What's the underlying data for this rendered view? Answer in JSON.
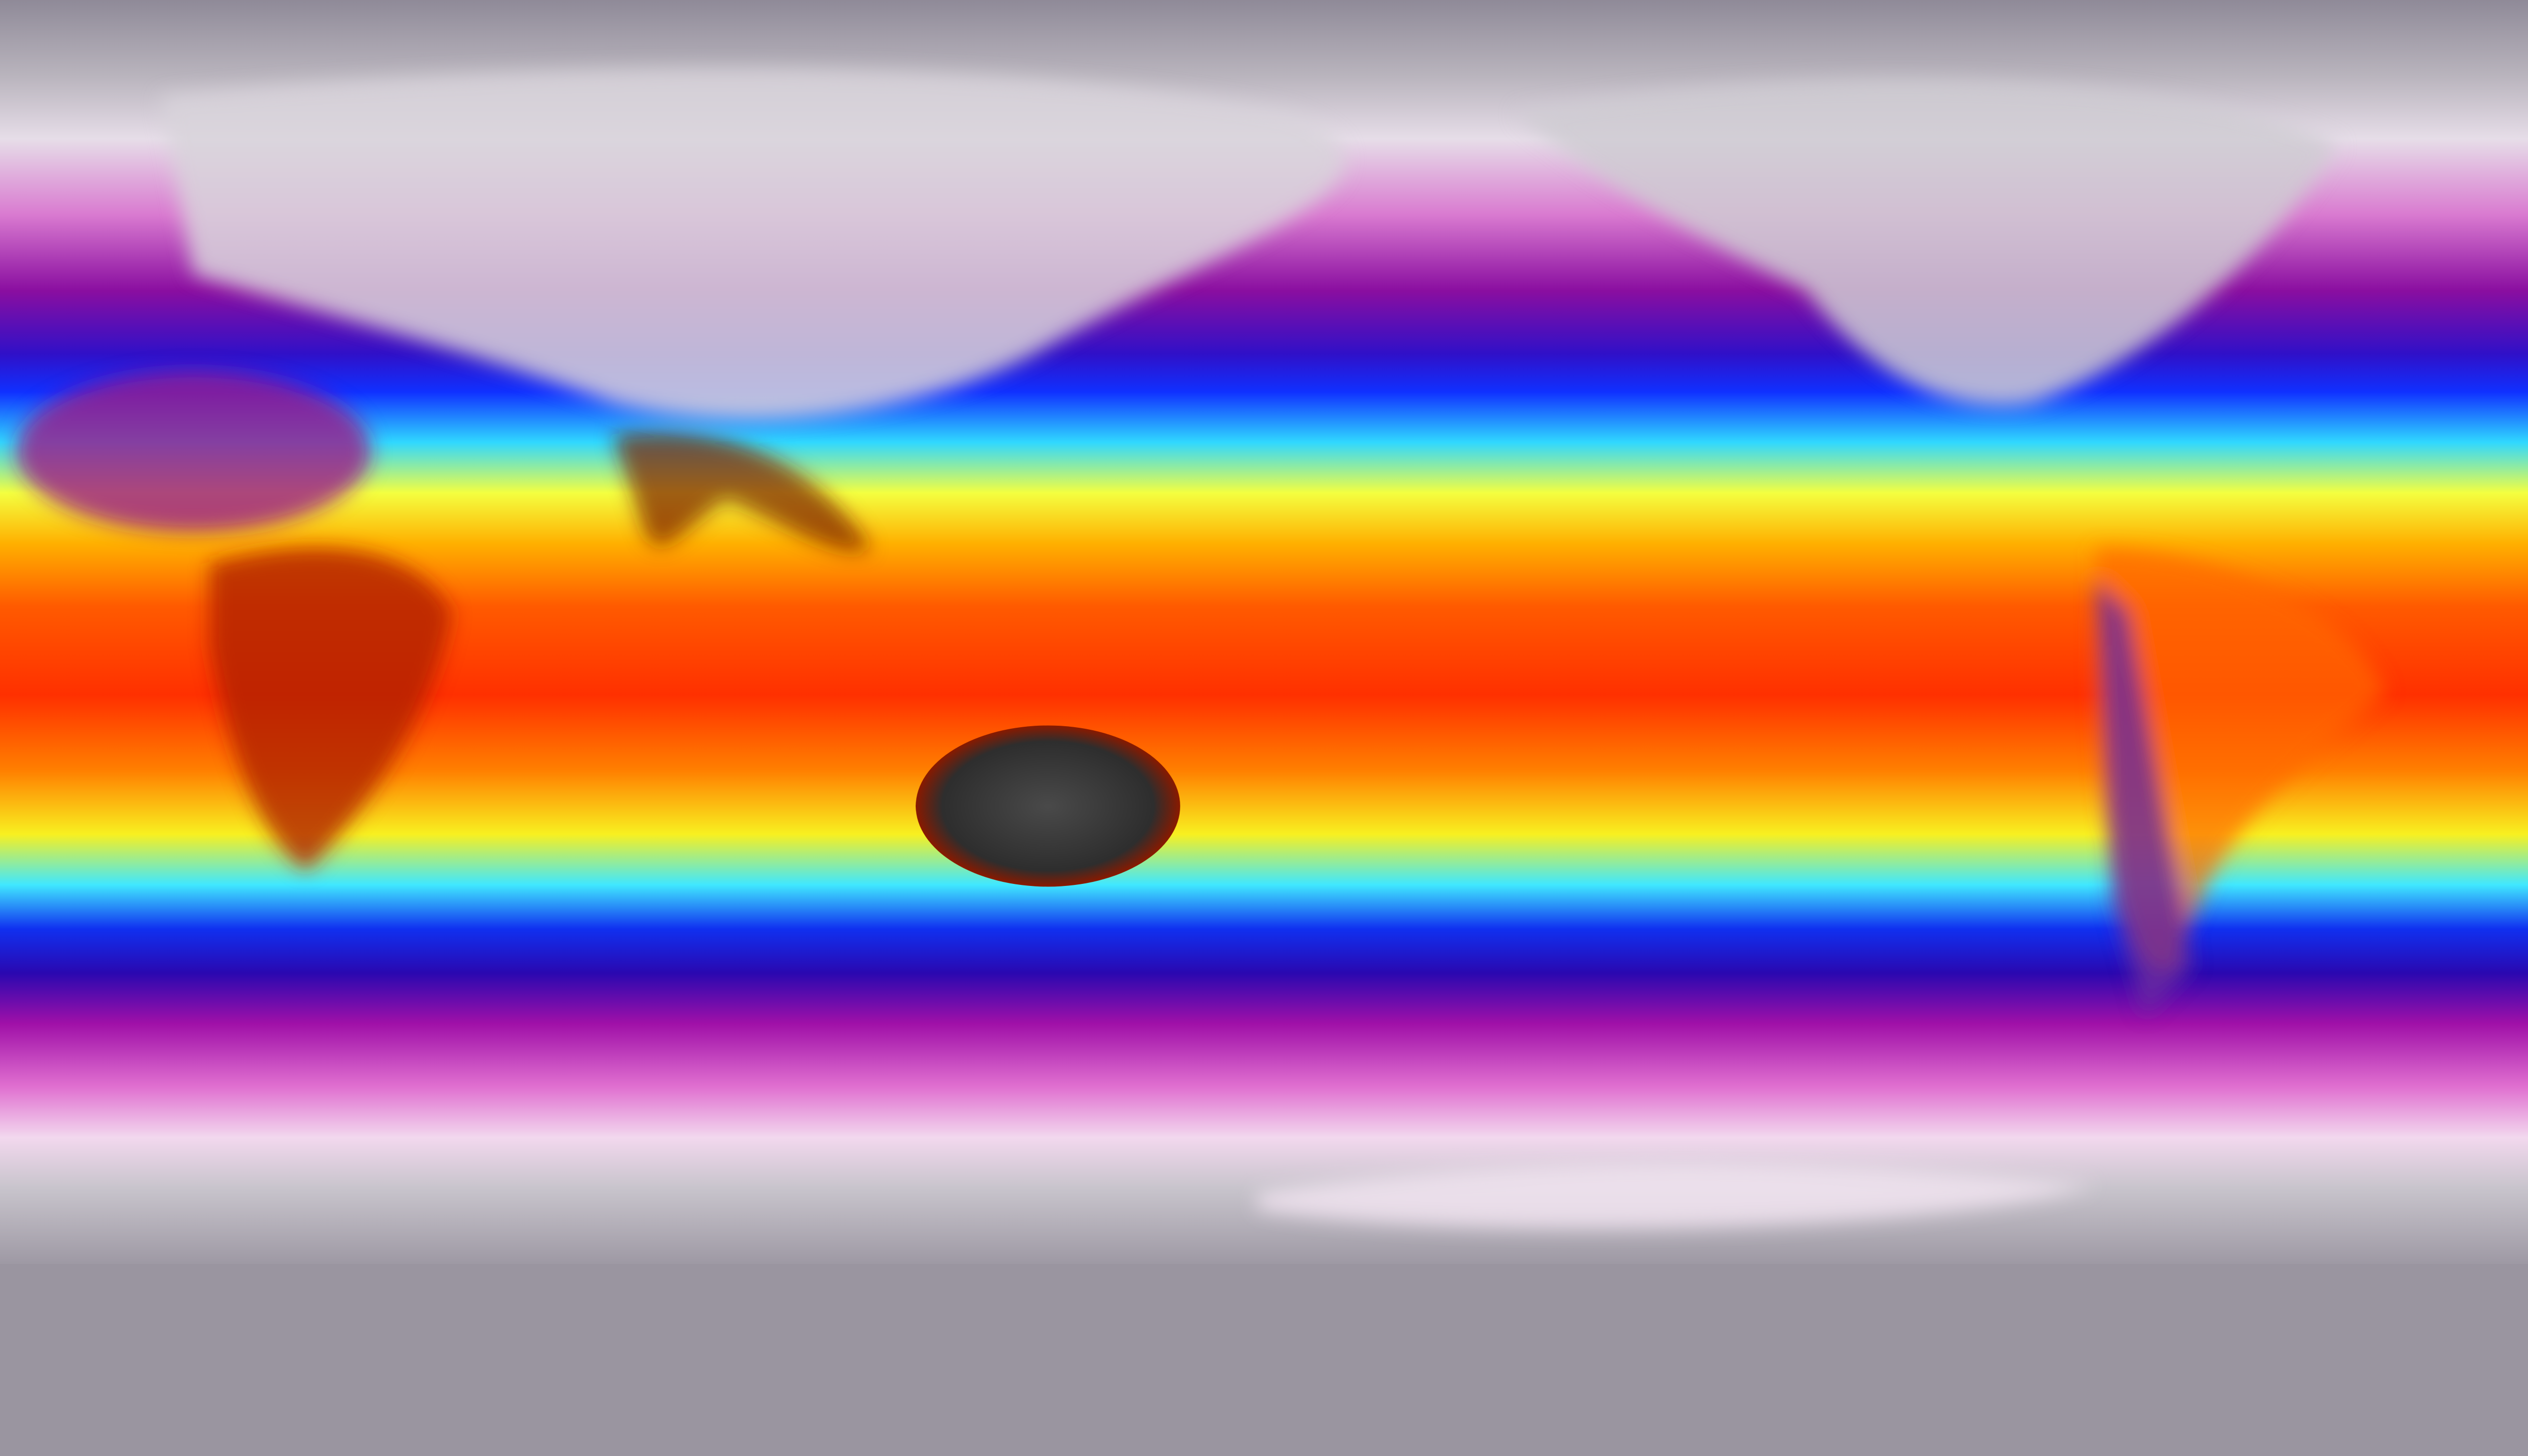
{
  "map": {
    "projection": "equirectangular",
    "variable_colormap": [
      "#8e8a96",
      "#e9e4ea",
      "#f4d6f2",
      "#c02aa8",
      "#6a0a9a",
      "#1010e0",
      "#2a7bff",
      "#40f0ff",
      "#f8ff30",
      "#ffb000",
      "#ff5000",
      "#e01000",
      "#3a2a28"
    ],
    "land_cold_color": "#c8c6cc",
    "land_hot_color": "#3a3a3a"
  }
}
